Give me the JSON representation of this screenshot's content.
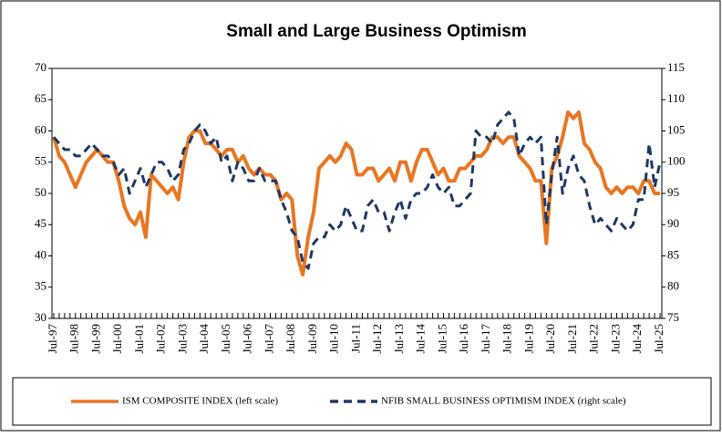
{
  "chart_data": {
    "type": "line",
    "title": "Small and Large Business Optimism",
    "categories": [
      "Jul-97",
      null,
      null,
      null,
      "Jul-98",
      null,
      null,
      null,
      "Jul-99",
      null,
      null,
      null,
      "Jul-00",
      null,
      null,
      null,
      "Jul-01",
      null,
      null,
      null,
      "Jul-02",
      null,
      null,
      null,
      "Jul-03",
      null,
      null,
      null,
      "Jul-04",
      null,
      null,
      null,
      "Jul-05",
      null,
      null,
      null,
      "Jul-06",
      null,
      null,
      null,
      "Jul-07",
      null,
      null,
      null,
      "Jul-08",
      null,
      null,
      null,
      "Jul-09",
      null,
      null,
      null,
      "Jul-10",
      null,
      null,
      null,
      "Jul-11",
      null,
      null,
      null,
      "Jul-12",
      null,
      null,
      null,
      "Jul-13",
      null,
      null,
      null,
      "Jul-14",
      null,
      null,
      null,
      "Jul-15",
      null,
      null,
      null,
      "Jul-16",
      null,
      null,
      null,
      "Jul-17",
      null,
      null,
      null,
      "Jul-18",
      null,
      null,
      null,
      "Jul-19",
      null,
      null,
      null,
      "Jul-20",
      null,
      null,
      null,
      "Jul-21",
      null,
      null,
      null,
      "Jul-22",
      null,
      null,
      null,
      "Jul-23",
      null,
      null,
      null,
      "Jul-24",
      null,
      null,
      null,
      "Jul-25"
    ],
    "series": [
      {
        "name": "ISM COMPOSITE INDEX (left scale)",
        "color": "#e87722",
        "line_style": "solid",
        "axis": "y",
        "values": [
          59,
          56,
          55,
          53,
          51,
          53,
          55,
          56,
          57,
          56,
          55,
          55,
          52,
          48,
          46,
          45,
          47,
          43,
          53,
          52,
          51,
          50,
          51,
          49,
          55,
          59,
          60,
          60,
          58,
          58,
          57,
          56,
          57,
          57,
          55,
          56,
          54,
          53,
          54,
          53,
          53,
          52,
          49,
          50,
          49,
          40,
          37,
          43,
          47,
          54,
          55,
          56,
          55,
          56,
          58,
          57,
          53,
          53,
          54,
          54,
          52,
          53,
          54,
          52,
          55,
          55,
          52,
          55,
          57,
          57,
          55,
          53,
          54,
          52,
          52,
          54,
          54,
          55,
          56,
          56,
          57,
          59,
          59,
          58,
          59,
          59,
          56,
          55,
          54,
          52,
          52,
          42,
          54,
          56,
          59,
          63,
          62,
          63,
          58,
          57,
          55,
          54,
          51,
          50,
          51,
          50,
          51,
          51,
          50,
          52,
          52,
          50,
          50
        ]
      },
      {
        "name": "NFIB SMALL BUSINESS OPTIMISM INDEX (right scale)",
        "color": "#1f3864",
        "line_style": "dashed",
        "axis": "y2",
        "values": [
          104,
          103,
          102,
          102,
          101,
          101,
          102,
          103,
          102,
          101,
          101,
          100,
          98,
          99,
          95,
          97,
          99,
          96,
          98,
          100,
          100,
          99,
          97,
          98,
          102,
          103,
          105,
          106,
          105,
          103,
          104,
          100,
          101,
          97,
          100,
          99,
          97,
          97,
          99,
          97,
          97,
          97,
          94,
          92,
          89,
          88,
          84,
          83,
          87,
          88,
          88,
          90,
          89,
          90,
          93,
          91,
          89,
          89,
          93,
          94,
          92,
          92,
          89,
          92,
          94,
          91,
          94,
          95,
          95,
          96,
          98,
          96,
          95,
          96,
          93,
          93,
          94,
          95,
          105,
          104,
          104,
          103,
          106,
          107,
          108,
          107,
          101,
          103,
          104,
          103,
          104,
          90,
          98,
          104,
          95,
          99,
          101,
          98,
          97,
          93,
          90,
          91,
          90,
          89,
          91,
          90,
          89,
          90,
          94,
          94,
          103,
          96,
          100
        ]
      }
    ],
    "ylim": [
      30,
      70
    ],
    "yticks": [
      30,
      35,
      40,
      45,
      50,
      55,
      60,
      65,
      70
    ],
    "y2lim": [
      75,
      115
    ],
    "y2ticks": [
      75,
      80,
      85,
      90,
      95,
      100,
      105,
      110,
      115
    ],
    "legend": "bottom"
  }
}
